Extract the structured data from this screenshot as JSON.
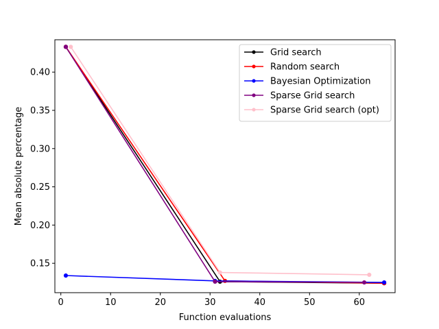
{
  "chart_data": {
    "type": "line",
    "title": "",
    "xlabel": "Function evaluations",
    "ylabel": "Mean absolute percentage",
    "xlim": [
      -1.2,
      67.2
    ],
    "ylim": [
      0.1116,
      0.4423
    ],
    "xticks": [
      0,
      10,
      20,
      30,
      40,
      50,
      60
    ],
    "yticks": [
      0.15,
      0.2,
      0.25,
      0.3,
      0.35,
      0.4
    ],
    "ytick_labels": [
      "0.15",
      "0.20",
      "0.25",
      "0.30",
      "0.35",
      "0.40"
    ],
    "grid": false,
    "legend_position": "upper-right",
    "series": [
      {
        "name": "Grid search",
        "color": "#000000",
        "marker": "circle",
        "x": [
          1,
          32,
          65
        ],
        "y": [
          0.433,
          0.126,
          0.124
        ]
      },
      {
        "name": "Random search",
        "color": "#ff0000",
        "marker": "circle",
        "x": [
          1,
          33,
          65
        ],
        "y": [
          0.433,
          0.127,
          0.124
        ]
      },
      {
        "name": "Bayesian Optimization",
        "color": "#0000ff",
        "marker": "circle",
        "x": [
          1,
          31,
          65
        ],
        "y": [
          0.134,
          0.127,
          0.125
        ]
      },
      {
        "name": "Sparse Grid search",
        "color": "#800080",
        "marker": "circle",
        "x": [
          1,
          31,
          61
        ],
        "y": [
          0.433,
          0.126,
          0.125
        ]
      },
      {
        "name": "Sparse Grid search (opt)",
        "color": "#ffc0cb",
        "marker": "circle",
        "x": [
          2,
          32,
          62
        ],
        "y": [
          0.433,
          0.138,
          0.135
        ]
      }
    ]
  }
}
